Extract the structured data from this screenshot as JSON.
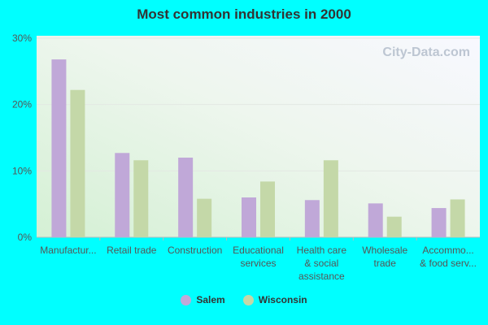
{
  "title": "Most common industries in 2000",
  "watermark": "City-Data.com",
  "chart_data": {
    "type": "bar",
    "title": "Most common industries in 2000",
    "categories": [
      [
        "Manufactur..."
      ],
      [
        "Retail trade"
      ],
      [
        "Construction"
      ],
      [
        "Educational",
        "services"
      ],
      [
        "Health care",
        "& social",
        "assistance"
      ],
      [
        "Wholesale",
        "trade"
      ],
      [
        "Accommo...",
        "& food serv..."
      ]
    ],
    "series": [
      {
        "name": "Salem",
        "color": "#c0a8d8",
        "values": [
          26.8,
          12.7,
          12.0,
          6.0,
          5.6,
          5.1,
          4.4
        ]
      },
      {
        "name": "Wisconsin",
        "color": "#c4d8a8",
        "values": [
          22.2,
          11.6,
          5.8,
          8.4,
          11.6,
          3.1,
          5.7
        ]
      }
    ],
    "y_ticks": [
      "0%",
      "10%",
      "20%",
      "30%"
    ],
    "y_tick_values": [
      0,
      10,
      20,
      30
    ],
    "ylim": [
      0,
      30
    ],
    "grid": true,
    "legend_position": "bottom"
  }
}
